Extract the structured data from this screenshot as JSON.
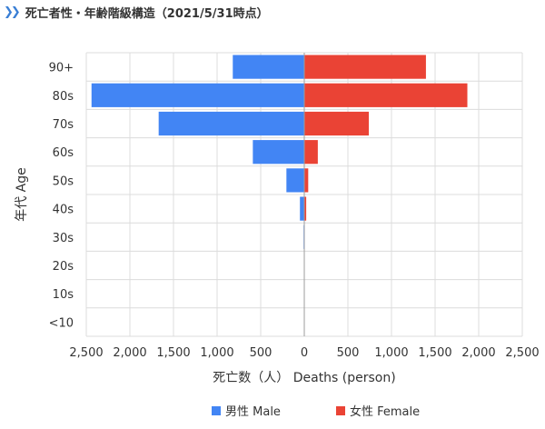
{
  "header": {
    "icon": "double-chevron-right-icon",
    "title": "死亡者性・年齢階級構造（2021/5/31時点）"
  },
  "chart_data": {
    "type": "bar",
    "orientation": "horizontal-population-pyramid",
    "categories": [
      "90+",
      "80s",
      "70s",
      "60s",
      "50s",
      "40s",
      "30s",
      "20s",
      "10s",
      "<10"
    ],
    "series": [
      {
        "name": "男性 Male",
        "color": "#4285f4",
        "side": "left",
        "values": [
          820,
          2440,
          1670,
          590,
          205,
          50,
          8,
          0,
          0,
          0
        ]
      },
      {
        "name": "女性 Female",
        "color": "#ea4335",
        "side": "right",
        "values": [
          1395,
          1870,
          740,
          155,
          45,
          22,
          0,
          0,
          0,
          0
        ]
      }
    ],
    "xlim": [
      -2500,
      2500
    ],
    "xticks": [
      -2500,
      -2000,
      -1500,
      -1000,
      -500,
      0,
      500,
      1000,
      1500,
      2000,
      2500
    ],
    "xtick_labels": [
      "2,500",
      "2,000",
      "1,500",
      "1,000",
      "500",
      "0",
      "500",
      "1,000",
      "1,500",
      "2,000",
      "2,500"
    ],
    "xlabel": "死亡数（人） Deaths (person)",
    "ylabel": "年代 Age",
    "grid": true,
    "legend_position": "bottom"
  }
}
